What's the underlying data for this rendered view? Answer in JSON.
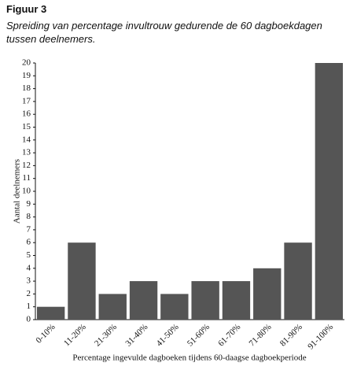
{
  "title": "Figuur 3",
  "subtitle": "Spreiding van percentage invultrouw gedurende de 60 dagboekdagen tussen deelnemers.",
  "chart_data": {
    "type": "bar",
    "categories": [
      "0-10%",
      "11-20%",
      "21-30%",
      "31-40%",
      "41-50%",
      "51-60%",
      "61-70%",
      "71-80%",
      "81-90%",
      "91-100%"
    ],
    "values": [
      1,
      6,
      2,
      3,
      2,
      3,
      3,
      4,
      6,
      20
    ],
    "color": "#555555",
    "x_label": "Percentage ingevulde dagboeken tijdens 60-daagse dagboekperiode",
    "y_label": "Aantal deelnemers",
    "ylim": [
      0,
      20
    ],
    "yticks": [
      0,
      1,
      2,
      3,
      4,
      5,
      6,
      7,
      8,
      9,
      10,
      11,
      12,
      13,
      14,
      15,
      16,
      17,
      18,
      19,
      20
    ],
    "grid": false
  }
}
